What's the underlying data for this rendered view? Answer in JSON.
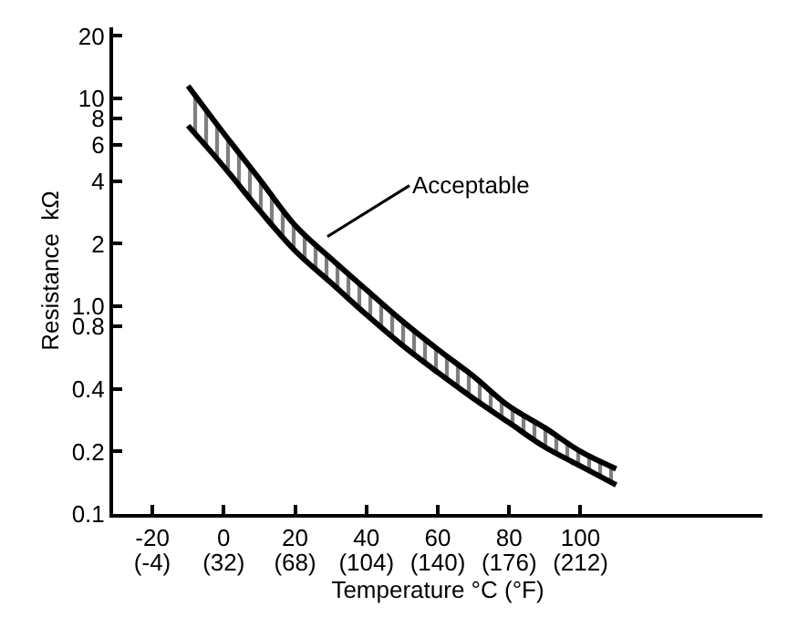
{
  "chart_data": {
    "type": "line",
    "xlabel": "Temperature °C (°F)",
    "ylabel": "Resistance  kΩ",
    "log": "y",
    "x": [
      -10,
      0,
      10,
      20,
      30,
      40,
      50,
      60,
      70,
      80,
      90,
      100,
      110
    ],
    "series": [
      {
        "color": "#000000",
        "values": [
          7.4,
          4.7,
          2.9,
          1.85,
          1.3,
          0.91,
          0.65,
          0.48,
          0.36,
          0.275,
          0.21,
          0.17,
          0.138
        ]
      },
      {
        "type": "area",
        "color": "#000000",
        "values": [
          11.5,
          6.8,
          4.1,
          2.45,
          1.7,
          1.2,
          0.85,
          0.62,
          0.46,
          0.33,
          0.26,
          0.2,
          0.165
        ]
      }
    ],
    "xlim": [
      -31,
      151
    ],
    "ylim": [
      0.1,
      22
    ],
    "xticks": [
      -20,
      0,
      20,
      40,
      60,
      80,
      100
    ],
    "x2lim": [
      -23.8,
      303.8
    ],
    "x2ticks": [
      {
        "value": -4,
        "label": "(-4)"
      },
      {
        "value": 32,
        "label": "(32)"
      },
      {
        "value": 68,
        "label": "(68)"
      },
      {
        "value": 104,
        "label": "(104)"
      },
      {
        "value": 140,
        "label": "(140)"
      },
      {
        "value": 176,
        "label": "(176)"
      },
      {
        "value": 212,
        "label": "(212)"
      }
    ],
    "yticks": [
      0.1,
      0.2,
      0.4,
      0.8,
      {
        "value": 1,
        "label": "1.0"
      },
      2,
      4,
      6,
      8,
      10,
      20
    ],
    "annotations": [
      "Acceptable"
    ]
  }
}
